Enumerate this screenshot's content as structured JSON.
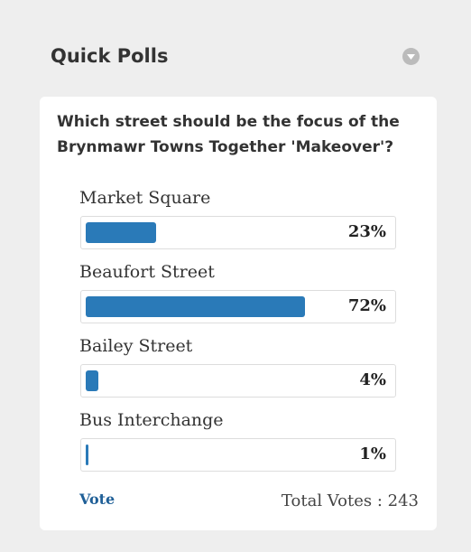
{
  "header": {
    "title": "Quick Polls"
  },
  "poll": {
    "question": "Which street should be the focus of the Brynmawr Towns Together 'Makeover'?",
    "options": [
      {
        "label": "Market Square",
        "value": 23,
        "value_label": "23%"
      },
      {
        "label": "Beaufort Street",
        "value": 72,
        "value_label": "72%"
      },
      {
        "label": "Bailey Street",
        "value": 4,
        "value_label": "4%"
      },
      {
        "label": "Bus Interchange",
        "value": 1,
        "value_label": "1%"
      }
    ],
    "vote_button": "Vote",
    "total_label": "Total Votes :",
    "total_votes": 243
  }
}
